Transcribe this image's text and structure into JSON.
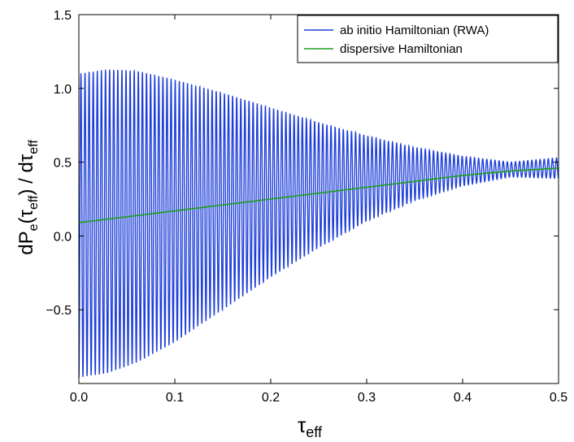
{
  "chart_data": {
    "type": "line",
    "xlabel": "τ",
    "xlabel_sub": "eff",
    "ylabel_parts": [
      "dP",
      "e",
      "(τ",
      "eff",
      ") / dτ",
      "eff"
    ],
    "xlim": [
      0,
      0.5
    ],
    "ylim": [
      -1,
      1.5
    ],
    "xticks": [
      0,
      0.1,
      0.2,
      0.3,
      0.4,
      0.5
    ],
    "xtick_labels": [
      "0.0",
      "0.1",
      "0.2",
      "0.3",
      "0.4",
      "0.5"
    ],
    "yticks": [
      -0.5,
      0,
      0.5,
      1,
      1.5
    ],
    "ytick_labels": [
      "−0.5",
      "0.0",
      "0.5",
      "1.0",
      "1.5"
    ],
    "grid": false,
    "legend_position": "top-right",
    "series": [
      {
        "name": "ab initio Hamiltonian (RWA)",
        "color": "#1f3fd9",
        "kind": "oscillation",
        "oscillations": 117,
        "phase_start": "min",
        "upper_envelope_x": [
          0,
          0.03,
          0.06,
          0.1,
          0.15,
          0.2,
          0.25,
          0.3,
          0.35,
          0.4,
          0.45,
          0.5
        ],
        "upper_envelope_y": [
          1.1,
          1.13,
          1.12,
          1.06,
          0.97,
          0.87,
          0.77,
          0.68,
          0.6,
          0.54,
          0.5,
          0.53
        ],
        "lower_envelope_x": [
          0,
          0.03,
          0.06,
          0.1,
          0.15,
          0.2,
          0.25,
          0.3,
          0.35,
          0.4,
          0.45,
          0.5
        ],
        "lower_envelope_y": [
          -0.96,
          -0.93,
          -0.86,
          -0.72,
          -0.5,
          -0.28,
          -0.08,
          0.1,
          0.24,
          0.34,
          0.4,
          0.39
        ]
      },
      {
        "name": "dispersive Hamiltonian",
        "color": "#1e9e1e",
        "kind": "smooth",
        "x": [
          0,
          0.05,
          0.1,
          0.15,
          0.2,
          0.25,
          0.3,
          0.35,
          0.4,
          0.45,
          0.5
        ],
        "y": [
          0.09,
          0.13,
          0.17,
          0.21,
          0.25,
          0.29,
          0.33,
          0.37,
          0.41,
          0.44,
          0.46
        ]
      }
    ]
  }
}
